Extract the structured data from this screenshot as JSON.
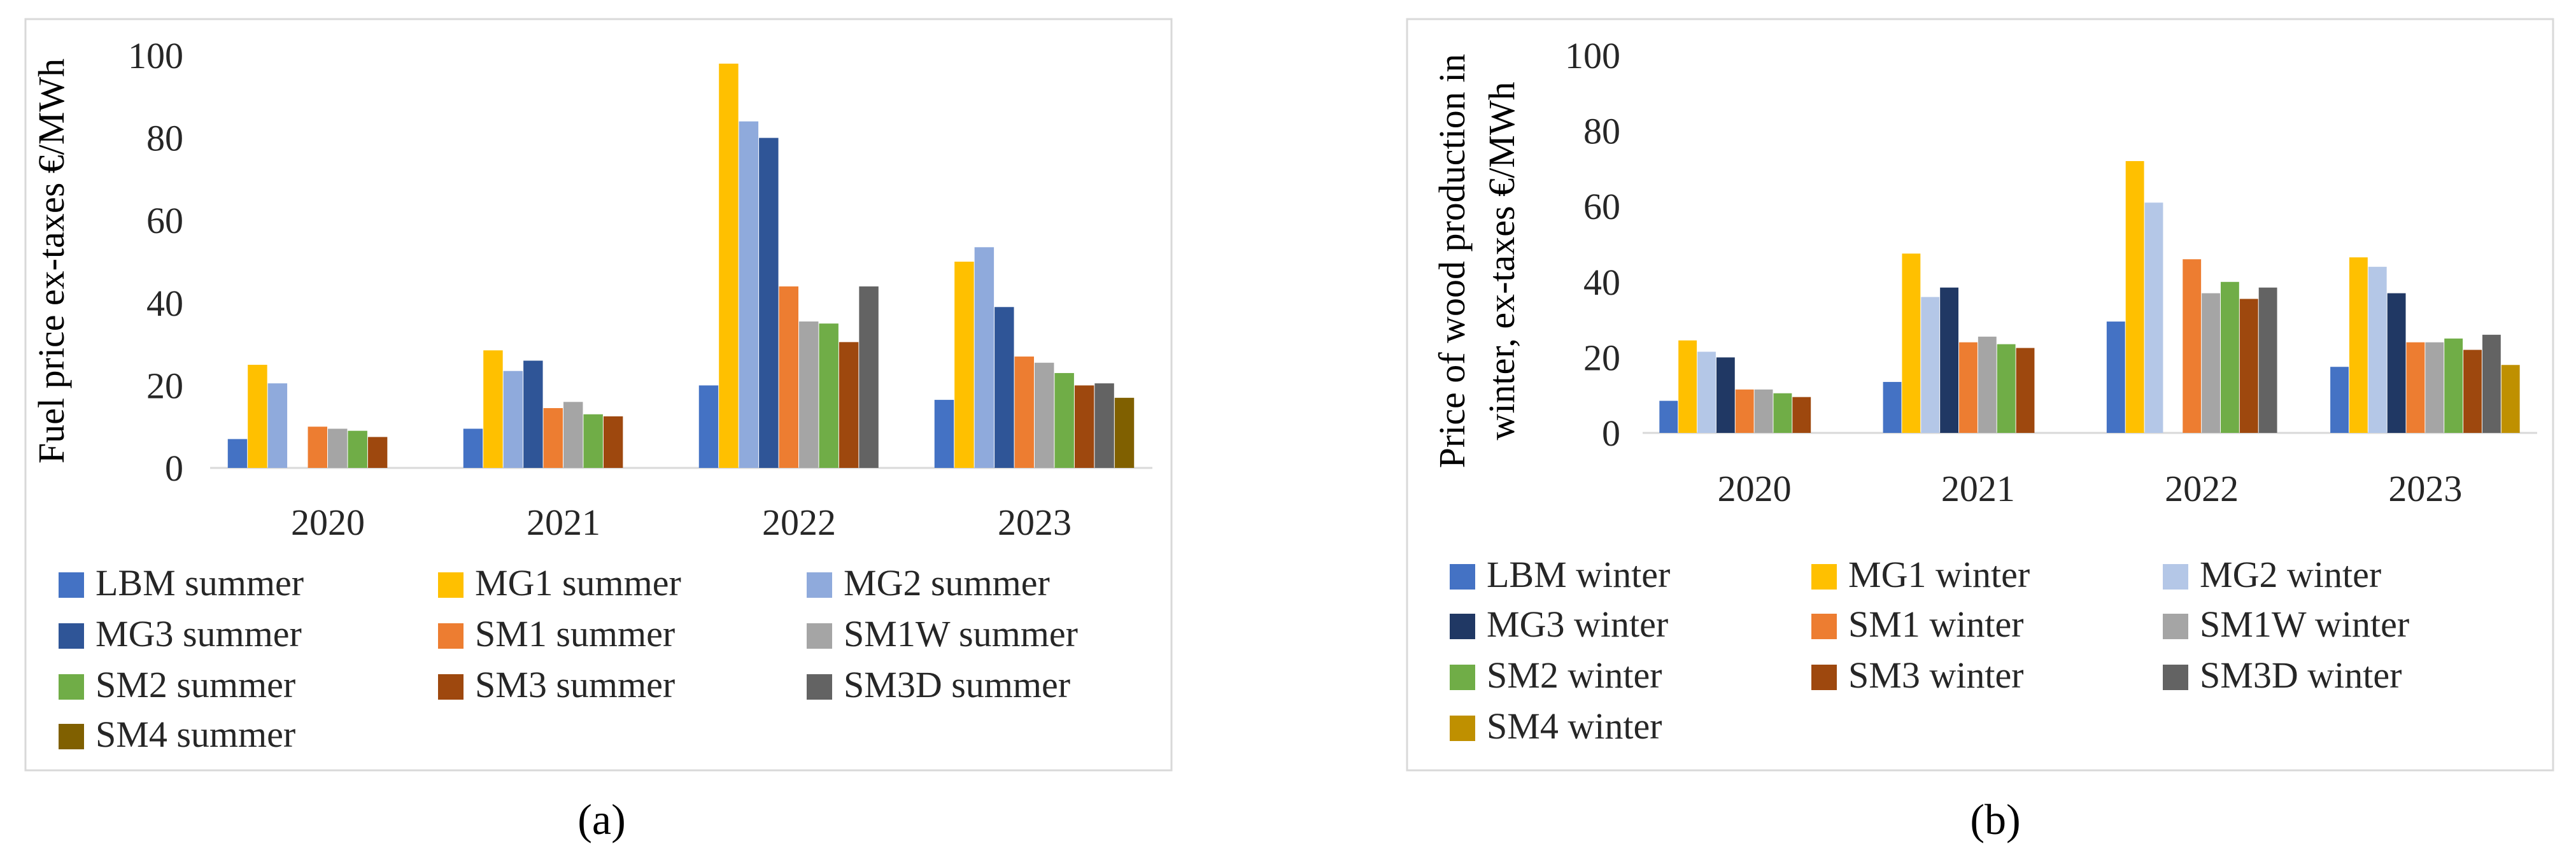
{
  "chart_data": [
    {
      "type": "bar",
      "panel_label": "(a)",
      "title": "",
      "xlabel": "",
      "ylabel": "Fuel price ex-taxes €/MWh",
      "ylabel_lines": [
        "Fuel price ex-taxes €/MWh"
      ],
      "ylim": [
        0,
        100
      ],
      "yticks": [
        0,
        20,
        40,
        60,
        80,
        100
      ],
      "categories": [
        "2020",
        "2021",
        "2022",
        "2023"
      ],
      "legend_position": "bottom",
      "series": [
        {
          "name": "LBM summer",
          "color": "#4472c4",
          "values": [
            7,
            9.5,
            20,
            16.5
          ]
        },
        {
          "name": "MG1 summer",
          "color": "#ffc000",
          "values": [
            25,
            28.5,
            98,
            50
          ]
        },
        {
          "name": "MG2 summer",
          "color": "#8faadc",
          "values": [
            20.5,
            23.5,
            84,
            53.5
          ]
        },
        {
          "name": "MG3 summer",
          "color": "#2f5597",
          "values": [
            null,
            26,
            80,
            39
          ]
        },
        {
          "name": "SM1 summer",
          "color": "#ed7d31",
          "values": [
            10,
            14.5,
            44,
            27
          ]
        },
        {
          "name": "SM1W summer",
          "color": "#a5a5a5",
          "values": [
            9.5,
            16,
            35.5,
            25.5
          ]
        },
        {
          "name": "SM2 summer",
          "color": "#70ad47",
          "values": [
            9,
            13,
            35,
            23
          ]
        },
        {
          "name": "SM3 summer",
          "color": "#9e480e",
          "values": [
            7.5,
            12.5,
            30.5,
            20
          ]
        },
        {
          "name": "SM3D summer",
          "color": "#636363",
          "values": [
            null,
            null,
            44,
            20.5
          ]
        },
        {
          "name": "SM4 summer",
          "color": "#806000",
          "values": [
            null,
            null,
            null,
            17
          ]
        }
      ]
    },
    {
      "type": "bar",
      "panel_label": "(b)",
      "title": "",
      "xlabel": "",
      "ylabel": "Price of wood production in winter, ex-taxes €/MWh",
      "ylabel_lines": [
        "Price of wood production in",
        "winter, ex-taxes €/MWh"
      ],
      "ylim": [
        0,
        100
      ],
      "yticks": [
        0,
        20,
        40,
        60,
        80,
        100
      ],
      "categories": [
        "2020",
        "2021",
        "2022",
        "2023"
      ],
      "legend_position": "bottom",
      "series": [
        {
          "name": "LBM winter",
          "color": "#4472c4",
          "values": [
            8.5,
            13.5,
            29.5,
            17.5
          ]
        },
        {
          "name": "MG1 winter",
          "color": "#ffc000",
          "values": [
            24.5,
            47.5,
            72,
            46.5
          ]
        },
        {
          "name": "MG2 winter",
          "color": "#b4c7e7",
          "values": [
            21.5,
            36,
            61,
            44
          ]
        },
        {
          "name": "MG3 winter",
          "color": "#203864",
          "values": [
            20,
            38.5,
            null,
            37
          ]
        },
        {
          "name": "SM1 winter",
          "color": "#ed7d31",
          "values": [
            11.5,
            24,
            46,
            24
          ]
        },
        {
          "name": "SM1W winter",
          "color": "#a5a5a5",
          "values": [
            11.5,
            25.5,
            37,
            24
          ]
        },
        {
          "name": "SM2 winter",
          "color": "#70ad47",
          "values": [
            10.5,
            23.5,
            40,
            25
          ]
        },
        {
          "name": "SM3 winter",
          "color": "#9e480e",
          "values": [
            9.5,
            22.5,
            35.5,
            22
          ]
        },
        {
          "name": "SM3D winter",
          "color": "#636363",
          "values": [
            null,
            null,
            38.5,
            26
          ]
        },
        {
          "name": "SM4 winter",
          "color": "#bf9000",
          "values": [
            null,
            null,
            null,
            18
          ]
        }
      ]
    }
  ]
}
